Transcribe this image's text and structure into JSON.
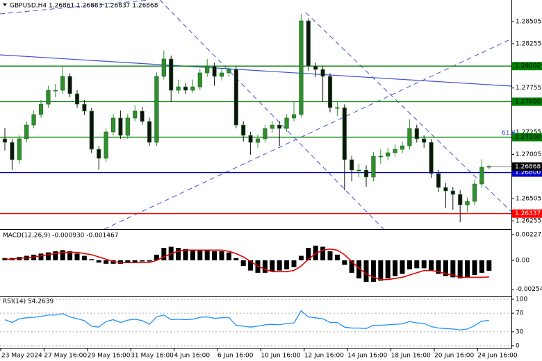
{
  "chart_data": [
    {
      "type": "candlestick",
      "title": "GBPUSD,H4  1.26861 1.26883 1.26837 1.26868",
      "categories": [
        "23 May 2024",
        null,
        null,
        null,
        null,
        null,
        "27 May 16:00",
        null,
        null,
        null,
        null,
        null,
        "29 May 16:00",
        null,
        null,
        null,
        null,
        null,
        "31 May 16:00",
        null,
        null,
        null,
        null,
        null,
        "4 Jun 16:00",
        null,
        null,
        null,
        null,
        null,
        "6 Jun 16:00",
        null,
        null,
        null,
        null,
        null,
        "10 Jun 16:00",
        null,
        null,
        null,
        null,
        null,
        "12 Jun 16:00",
        null,
        null,
        null,
        null,
        null,
        "14 Jun 16:00",
        null,
        null,
        null,
        null,
        null,
        "18 Jun 16:00",
        null,
        null,
        null,
        null,
        null,
        "20 Jun 16:00",
        null,
        null,
        null,
        null,
        null,
        "24 Jun 16:00",
        null
      ],
      "ohlc": [
        [
          1.27181,
          1.273,
          1.2705,
          1.27141
        ],
        [
          1.27141,
          1.2718,
          1.2683,
          1.26945
        ],
        [
          1.26945,
          1.2722,
          1.269,
          1.27181
        ],
        [
          1.27181,
          1.2738,
          1.2714,
          1.27337
        ],
        [
          1.27337,
          1.275,
          1.273,
          1.27455
        ],
        [
          1.27455,
          1.2762,
          1.2742,
          1.27572
        ],
        [
          1.27572,
          1.2778,
          1.2753,
          1.27729
        ],
        [
          1.27729,
          1.278,
          1.2765,
          1.27729
        ],
        [
          1.27729,
          1.28,
          1.2769,
          1.27886
        ],
        [
          1.27886,
          1.2792,
          1.2765,
          1.2769
        ],
        [
          1.2769,
          1.2773,
          1.2753,
          1.27572
        ],
        [
          1.27572,
          1.2762,
          1.2745,
          1.27494
        ],
        [
          1.27494,
          1.2753,
          1.2702,
          1.27063
        ],
        [
          1.27063,
          1.271,
          1.2683,
          1.26961
        ],
        [
          1.26961,
          1.273,
          1.2692,
          1.27259
        ],
        [
          1.27259,
          1.2746,
          1.2722,
          1.27416
        ],
        [
          1.27416,
          1.275,
          1.2718,
          1.2722
        ],
        [
          1.2722,
          1.2746,
          1.2718,
          1.27416
        ],
        [
          1.27416,
          1.2756,
          1.2738,
          1.27494
        ],
        [
          1.27494,
          1.2754,
          1.2734,
          1.27377
        ],
        [
          1.27377,
          1.2742,
          1.271,
          1.27141
        ],
        [
          1.27141,
          1.2793,
          1.271,
          1.27886
        ],
        [
          1.27886,
          1.2818,
          1.2785,
          1.28082
        ],
        [
          1.28082,
          1.2812,
          1.276,
          1.27729
        ],
        [
          1.27729,
          1.2785,
          1.2769,
          1.27768
        ],
        [
          1.27768,
          1.2781,
          1.2769,
          1.27729
        ],
        [
          1.27729,
          1.2785,
          1.277,
          1.27768
        ],
        [
          1.27768,
          1.2797,
          1.2773,
          1.27925
        ],
        [
          1.27925,
          1.2808,
          1.2788,
          1.28003
        ],
        [
          1.28003,
          1.2804,
          1.2778,
          1.27886
        ],
        [
          1.27886,
          1.2798,
          1.2784,
          1.27925
        ],
        [
          1.27925,
          1.2801,
          1.2788,
          1.27964
        ],
        [
          1.27964,
          1.28,
          1.273,
          1.27337
        ],
        [
          1.27337,
          1.2738,
          1.2715,
          1.2722
        ],
        [
          1.2722,
          1.2726,
          1.27,
          1.27141
        ],
        [
          1.27141,
          1.2723,
          1.2708,
          1.27181
        ],
        [
          1.27181,
          1.2734,
          1.2714,
          1.27298
        ],
        [
          1.27298,
          1.2738,
          1.2725,
          1.27337
        ],
        [
          1.27337,
          1.2738,
          1.271,
          1.27298
        ],
        [
          1.27298,
          1.2746,
          1.2726,
          1.27416
        ],
        [
          1.27416,
          1.276,
          1.2738,
          1.27455
        ],
        [
          1.27455,
          1.2859,
          1.2742,
          1.28513
        ],
        [
          1.28513,
          1.2854,
          1.2795,
          1.28003
        ],
        [
          1.28003,
          1.2804,
          1.2788,
          1.27964
        ],
        [
          1.27964,
          1.28,
          1.276,
          1.27886
        ],
        [
          1.27886,
          1.2792,
          1.2748,
          1.27533
        ],
        [
          1.27533,
          1.276,
          1.2744,
          1.27533
        ],
        [
          1.27533,
          1.2757,
          1.266,
          1.26945
        ],
        [
          1.26945,
          1.2699,
          1.267,
          1.26828
        ],
        [
          1.26828,
          1.269,
          1.2675,
          1.26828
        ],
        [
          1.26828,
          1.2688,
          1.2664,
          1.2675
        ],
        [
          1.2675,
          1.2703,
          1.267,
          1.26985
        ],
        [
          1.26985,
          1.2706,
          1.269,
          1.26985
        ],
        [
          1.26985,
          1.2708,
          1.2694,
          1.27024
        ],
        [
          1.27024,
          1.2712,
          1.2698,
          1.27063
        ],
        [
          1.27063,
          1.2715,
          1.2702,
          1.27102
        ],
        [
          1.27102,
          1.274,
          1.2706,
          1.27298
        ],
        [
          1.27298,
          1.2734,
          1.2714,
          1.27181
        ],
        [
          1.27181,
          1.2722,
          1.2708,
          1.27141
        ],
        [
          1.27141,
          1.2718,
          1.2674,
          1.26789
        ],
        [
          1.26789,
          1.2683,
          1.2658,
          1.26632
        ],
        [
          1.26632,
          1.2668,
          1.264,
          1.26593
        ],
        [
          1.26593,
          1.2664,
          1.2638,
          1.26554
        ],
        [
          1.26554,
          1.266,
          1.2624,
          1.26436
        ],
        [
          1.26436,
          1.2652,
          1.2635,
          1.26475
        ],
        [
          1.26475,
          1.2672,
          1.2643,
          1.26671
        ],
        [
          1.26671,
          1.2695,
          1.2663,
          1.26861
        ],
        [
          1.26861,
          1.26883,
          1.26837,
          1.26868
        ]
      ],
      "up_color": "#2f8f2f",
      "down_color": "#111111",
      "ylim": [
        1.26162,
        1.28748
      ],
      "yticks": [
        1.28505,
        1.28255,
        1.27755,
        1.27255,
        1.27005,
        1.26505,
        1.26255
      ],
      "levels": [
        {
          "value": 1.28002,
          "label": "1.28002",
          "color": "#008000"
        },
        {
          "value": 1.276,
          "label": "1.27600",
          "color": "#008000"
        },
        {
          "value": 1.272,
          "label": "1.27200",
          "color": "#008000"
        },
        {
          "value": 1.268,
          "label": "1.26800",
          "color": "#0000cd"
        },
        {
          "value": 1.26337,
          "label": "1.26337",
          "color": "#ff0000"
        }
      ],
      "last_price": 1.26868,
      "annotations": [
        "61.8"
      ]
    },
    {
      "type": "macd",
      "title": "MACD(12,26,9) -0.000930 -0.001467",
      "histogram": [
        0.0002,
        0.0002,
        0.0003,
        0.0004,
        0.0005,
        0.0006,
        0.0007,
        0.0008,
        0.0009,
        0.0008,
        0.0006,
        0.0004,
        0.0001,
        -0.0002,
        -0.0003,
        -0.0003,
        -0.0003,
        -0.0002,
        -0.0002,
        -0.0001,
        -0.0001,
        0.0005,
        0.0011,
        0.0012,
        0.0011,
        0.001,
        0.0009,
        0.0009,
        0.0009,
        0.0008,
        0.0008,
        0.0007,
        0.0002,
        -0.0005,
        -0.0009,
        -0.0011,
        -0.0011,
        -0.001,
        -0.0009,
        -0.0008,
        -0.0006,
        0.0004,
        0.0011,
        0.0013,
        0.0012,
        0.0008,
        0.0005,
        -0.0004,
        -0.0011,
        -0.0016,
        -0.0019,
        -0.0019,
        -0.0018,
        -0.0016,
        -0.0014,
        -0.0012,
        -0.0008,
        -0.0007,
        -0.0007,
        -0.0009,
        -0.0012,
        -0.0014,
        -0.0015,
        -0.0016,
        -0.0015,
        -0.0013,
        -0.0011,
        -0.00093
      ],
      "signal": [
        0.0001,
        0.0001,
        0.0002,
        0.0002,
        0.0003,
        0.0004,
        0.0005,
        0.0006,
        0.0007,
        0.0007,
        0.0007,
        0.0006,
        0.0005,
        0.0003,
        0.0001,
        -0.0001,
        -0.0002,
        -0.0002,
        -0.0002,
        -0.0002,
        -0.0002,
        0,
        0.0003,
        0.0006,
        0.0008,
        0.0009,
        0.0009,
        0.0009,
        0.0009,
        0.0009,
        0.0009,
        0.0008,
        0.0006,
        0.0003,
        -0.0001,
        -0.0005,
        -0.0008,
        -0.001,
        -0.001,
        -0.001,
        -0.0009,
        -0.0005,
        0.0001,
        0.0006,
        0.0009,
        0.001,
        0.0009,
        0.0005,
        -0.0001,
        -0.0007,
        -0.0012,
        -0.0015,
        -0.0017,
        -0.0017,
        -0.0016,
        -0.0015,
        -0.0013,
        -0.0011,
        -0.0009,
        -0.0009,
        -0.001,
        -0.0012,
        -0.0013,
        -0.0015,
        -0.0015,
        -0.0015,
        -0.0015,
        -0.001467
      ],
      "hist_color": "#000000",
      "signal_color": "#e00000",
      "ylim": [
        -0.00307,
        0.00264
      ],
      "yticks": [
        0.002273,
        {
          "value": 0,
          "label": "0.00"
        },
        -0.002547
      ]
    },
    {
      "type": "line",
      "title": "RSI(14) 54.2639",
      "values": [
        56,
        50,
        58,
        60,
        61,
        63,
        66,
        66,
        69,
        62,
        58,
        54,
        42,
        40,
        52,
        56,
        50,
        55,
        57,
        54,
        46,
        62,
        66,
        56,
        57,
        56,
        57,
        61,
        62,
        59,
        60,
        61,
        44,
        42,
        40,
        42,
        45,
        46,
        45,
        48,
        49,
        75,
        62,
        60,
        58,
        50,
        50,
        40,
        38,
        38,
        37,
        44,
        44,
        45,
        46,
        47,
        52,
        49,
        48,
        41,
        38,
        37,
        36,
        34,
        36,
        43,
        53,
        54.2639
      ],
      "color": "#1e90ff",
      "ylim": [
        -3,
        104.5
      ],
      "yticks": [
        100,
        70,
        30,
        0
      ],
      "grid": true
    }
  ]
}
